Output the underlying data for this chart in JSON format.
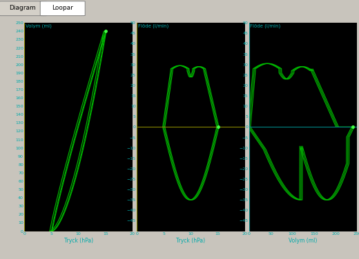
{
  "bg_color": "#000000",
  "curve_color": "#00bb00",
  "axis_color_yellow": "#888800",
  "axis_color_cyan": "#008888",
  "tick_color": "#00aaaa",
  "label_color": "#00aaaa",
  "tab_labels": [
    "Diagram",
    "Loopar"
  ],
  "tab_active": 1,
  "plot1": {
    "ylabel": "Volym (ml)",
    "xlabel": "Tryck (hPa)",
    "xlim": [
      0,
      20
    ],
    "ylim": [
      0,
      250
    ],
    "yticks": [
      0,
      10,
      20,
      30,
      40,
      50,
      60,
      70,
      80,
      90,
      100,
      110,
      120,
      130,
      140,
      150,
      160,
      170,
      180,
      190,
      200,
      210,
      220,
      230,
      240,
      250
    ],
    "xticks": [
      0,
      5,
      10,
      15,
      20
    ]
  },
  "plot2": {
    "ylabel_label": "Flöde (l/min)",
    "xlabel": "Tryck (hPa)",
    "xlim": [
      0,
      20
    ],
    "ylim": [
      -50,
      50
    ],
    "yticks": [
      -45,
      -40,
      -35,
      -30,
      -25,
      -20,
      -15,
      -10,
      -5,
      0,
      5,
      10,
      15,
      20,
      25,
      30,
      35,
      40,
      45,
      50
    ],
    "xticks": [
      0,
      5,
      10,
      15,
      20
    ]
  },
  "plot3": {
    "ylabel_label": "Flöde (l/min)",
    "xlabel": "Volym (ml)",
    "xlim": [
      0,
      250
    ],
    "ylim": [
      -50,
      50
    ],
    "yticks": [
      -45,
      -40,
      -35,
      -30,
      -25,
      -20,
      -15,
      -10,
      -5,
      0,
      5,
      10,
      15,
      20,
      25,
      30,
      35,
      40,
      45,
      50
    ],
    "xticks": [
      0,
      50,
      100,
      150,
      200,
      250
    ]
  }
}
